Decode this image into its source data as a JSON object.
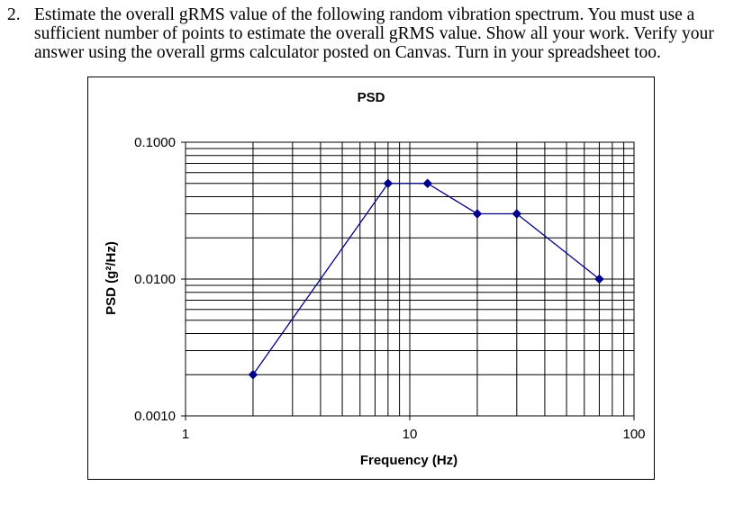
{
  "question": {
    "number": "2.",
    "text": "Estimate the overall gRMS value of the following random vibration spectrum. You must use a sufficient number of points to estimate the overall gRMS value. Show all your work. Verify your answer using the overall grms calculator posted on Canvas. Turn in your spreadsheet too."
  },
  "chart_data": {
    "type": "line",
    "title": "PSD",
    "xlabel": "Frequency (Hz)",
    "ylabel": "PSD (g²/Hz)",
    "x_scale": "log",
    "y_scale": "log",
    "xlim": [
      1,
      100
    ],
    "ylim": [
      0.001,
      0.1
    ],
    "x_ticks": [
      1,
      10,
      100
    ],
    "x_tick_labels": [
      "1",
      "10",
      "100"
    ],
    "y_ticks": [
      0.001,
      0.01,
      0.1
    ],
    "y_tick_labels": [
      "0.0010",
      "0.0100",
      "0.1000"
    ],
    "grid": true,
    "legend": "none",
    "line_color": "#00008b",
    "marker_color": "#00008b",
    "series": [
      {
        "x": [
          2,
          8,
          12,
          20,
          30,
          70
        ],
        "y": [
          0.002,
          0.05,
          0.05,
          0.03,
          0.03,
          0.01
        ]
      }
    ]
  }
}
